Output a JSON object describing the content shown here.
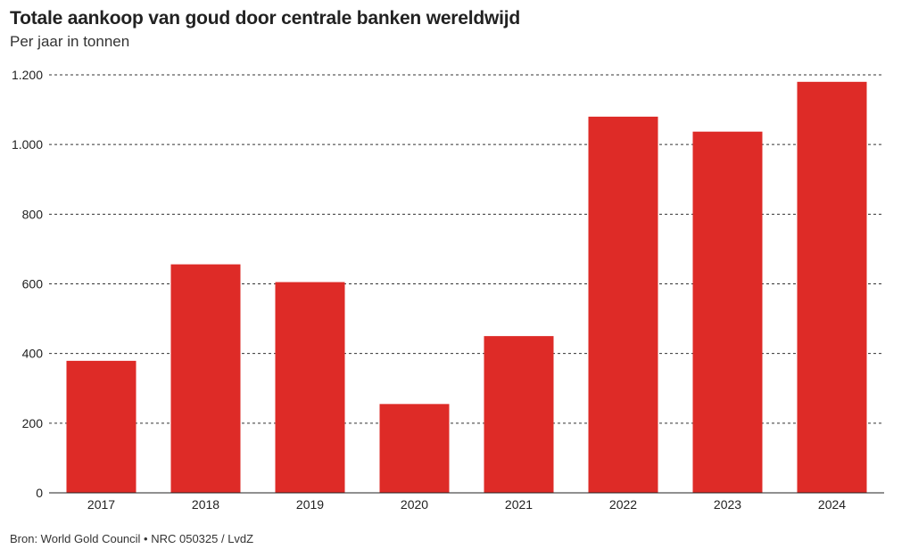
{
  "chart_data": {
    "type": "bar",
    "title": "Totale aankoop van goud door centrale banken wereldwijd",
    "subtitle": "Per jaar in tonnen",
    "categories": [
      "2017",
      "2018",
      "2019",
      "2020",
      "2021",
      "2022",
      "2023",
      "2024"
    ],
    "values": [
      379,
      656,
      605,
      255,
      450,
      1080,
      1037,
      1180
    ],
    "ylim": [
      0,
      1200
    ],
    "yticks": [
      0,
      200,
      400,
      600,
      800,
      1000,
      1200
    ],
    "ytick_labels": [
      "0",
      "200",
      "400",
      "600",
      "800",
      "1.000",
      "1.200"
    ],
    "xlabel": "",
    "ylabel": "",
    "grid": "horizontal-dotted",
    "bar_color": "#de2b27",
    "source": "Bron: World Gold Council • NRC 050325 / LvdZ"
  }
}
